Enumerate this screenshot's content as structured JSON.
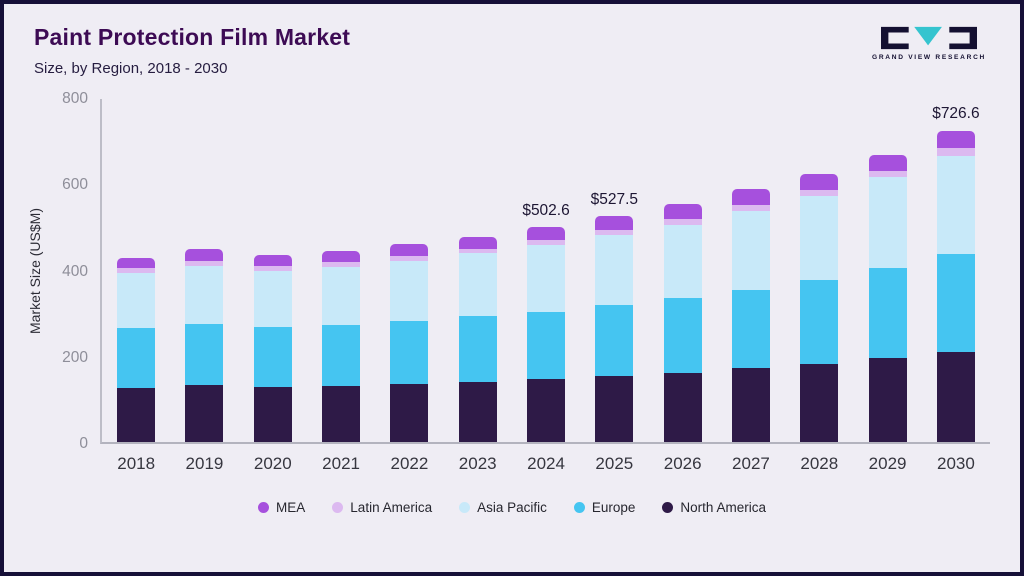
{
  "header": {
    "title": "Paint Protection Film Market",
    "subtitle": "Size, by Region, 2018 - 2030",
    "logo_text": "GRAND VIEW RESEARCH"
  },
  "chart_data": {
    "type": "bar",
    "stacked": true,
    "title": "Paint Protection Film Market Size, by Region, 2018 - 2030",
    "xlabel": "",
    "ylabel": "Market Size (US$M)",
    "ylim": [
      0,
      800
    ],
    "yticks": [
      0,
      200,
      400,
      600,
      800
    ],
    "grid": false,
    "legend_position": "bottom",
    "categories": [
      "2018",
      "2019",
      "2020",
      "2021",
      "2022",
      "2023",
      "2024",
      "2025",
      "2026",
      "2027",
      "2028",
      "2029",
      "2030"
    ],
    "series": [
      {
        "name": "North America",
        "color": "#2e1a47",
        "values": [
          125,
          132,
          128,
          130,
          135,
          140,
          147,
          153,
          160,
          172,
          182,
          195,
          210
        ]
      },
      {
        "name": "Europe",
        "color": "#45c5f1",
        "values": [
          140,
          143,
          140,
          143,
          147,
          153,
          157,
          166,
          175,
          183,
          196,
          212,
          228
        ]
      },
      {
        "name": "Asia Pacific",
        "color": "#c8e9f9",
        "values": [
          130,
          135,
          132,
          135,
          140,
          147,
          155,
          163,
          172,
          184,
          195,
          210,
          230
        ]
      },
      {
        "name": "Latin America",
        "color": "#dcb9f0",
        "values": [
          10,
          12,
          10,
          11,
          11,
          11,
          13,
          13,
          14,
          15,
          15,
          16,
          18
        ]
      },
      {
        "name": "MEA",
        "color": "#a650dd",
        "values": [
          25,
          28,
          27,
          26,
          29,
          27,
          30.6,
          32.5,
          34,
          36,
          37,
          37,
          40.6
        ]
      }
    ],
    "totals": [
      430,
      450,
      437,
      445,
      462,
      478,
      502.6,
      527.5,
      555,
      590,
      625,
      670,
      726.6
    ],
    "value_labels": [
      "",
      "",
      "",
      "",
      "",
      "",
      "$502.6",
      "$527.5",
      "",
      "",
      "",
      "",
      "$726.6"
    ],
    "legend": [
      "MEA",
      "Latin America",
      "Asia Pacific",
      "Europe",
      "North America"
    ]
  },
  "logo_colors": {
    "dark": "#141031",
    "teal": "#35c4cf"
  }
}
